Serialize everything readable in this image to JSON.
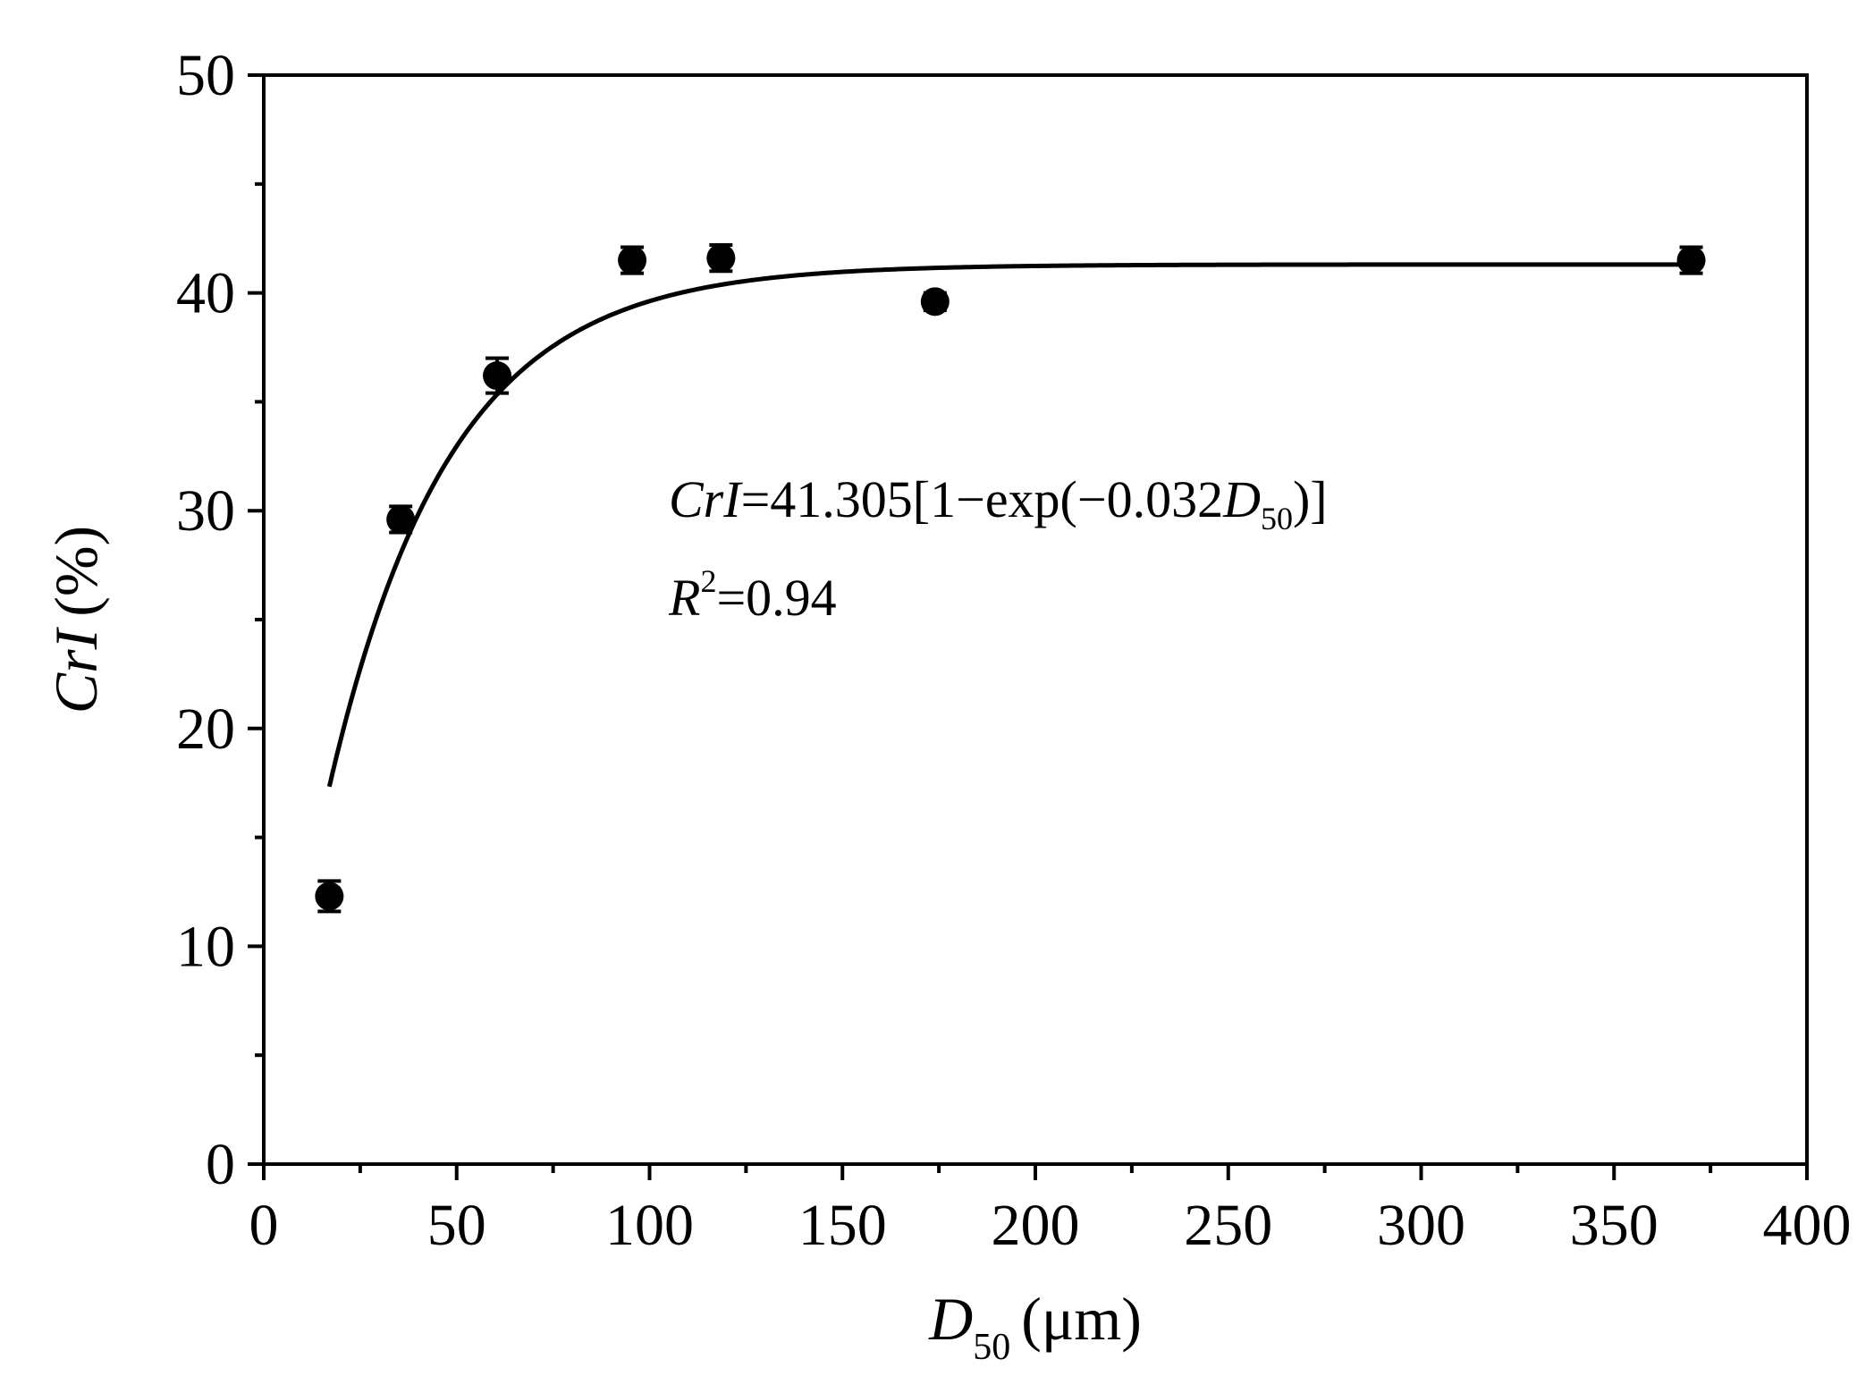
{
  "chart_data": {
    "type": "scatter",
    "x_axis": {
      "label_var": "D",
      "label_sub": "50",
      "label_unit": "(μm)",
      "min": 0,
      "max": 400,
      "major_ticks": [
        0,
        50,
        100,
        150,
        200,
        250,
        300,
        350,
        400
      ],
      "minor_step": 25
    },
    "y_axis": {
      "label_var": "CrI",
      "label_unit": "(%)",
      "min": 0,
      "max": 50,
      "major_ticks": [
        0,
        10,
        20,
        30,
        40,
        50
      ],
      "minor_step": 5
    },
    "points": [
      {
        "x": 17,
        "y": 12.3,
        "err": 0.7
      },
      {
        "x": 35.5,
        "y": 29.6,
        "err": 0.6
      },
      {
        "x": 60.5,
        "y": 36.2,
        "err": 0.8
      },
      {
        "x": 95.5,
        "y": 41.5,
        "err": 0.6
      },
      {
        "x": 118.5,
        "y": 41.6,
        "err": 0.6
      },
      {
        "x": 174,
        "y": 39.6,
        "err": 0.4
      },
      {
        "x": 370,
        "y": 41.5,
        "err": 0.6
      }
    ],
    "fit": {
      "type": "exponential",
      "a": 41.305,
      "k": 0.032,
      "x_start": 17,
      "x_end": 370
    },
    "annotation": {
      "eq_var": "CrI",
      "eq_body": "=41.305[1−exp(−0.032",
      "eq_var2": "D",
      "eq_sub": "50",
      "eq_close": ")]",
      "r2_var": "R",
      "r2_sup": "2",
      "r2_value": "=0.94"
    },
    "marker_color": "#000000",
    "line_color": "#000000",
    "grid": false
  }
}
